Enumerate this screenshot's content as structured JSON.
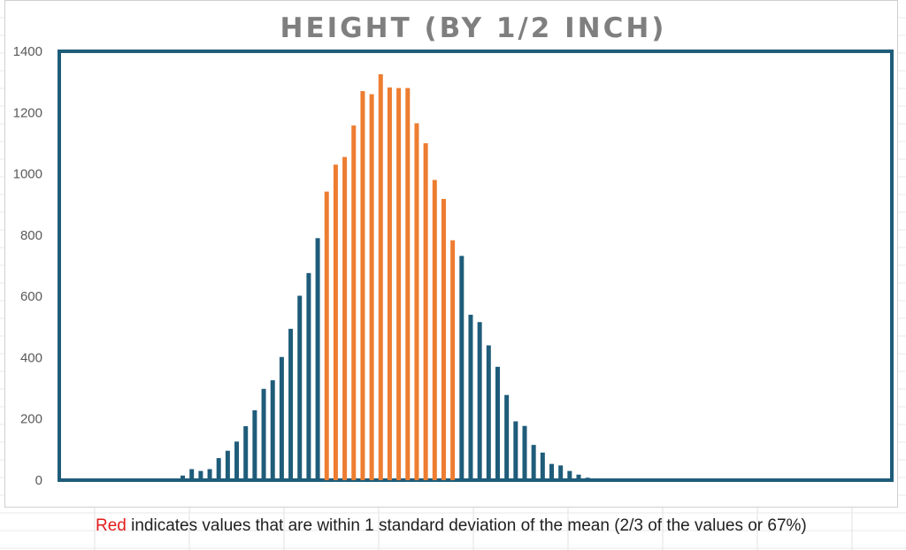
{
  "caption": {
    "highlight_word": "Red",
    "rest": " indicates values that are within 1 standard deviation of the mean (2/3 of the values or 67%)"
  },
  "colors": {
    "highlight": "#ED7D31",
    "base": "#1F5C7A",
    "frame": "#1F5C7A",
    "caption_red": "#E31B1B"
  },
  "chart_data": {
    "type": "bar",
    "title": "HEIGHT (BY 1/2 INCH)",
    "xlabel": "",
    "ylabel": "",
    "ylim": [
      0,
      1400
    ],
    "yticks": [
      0,
      200,
      400,
      600,
      800,
      1000,
      1200,
      1400
    ],
    "grid": false,
    "legend": "none",
    "values": [
      0,
      0,
      0,
      0,
      0,
      0,
      0,
      0,
      0,
      15,
      36,
      30,
      36,
      72,
      96,
      126,
      176,
      228,
      298,
      326,
      402,
      494,
      602,
      676,
      790,
      942,
      1030,
      1055,
      1158,
      1270,
      1260,
      1325,
      1282,
      1280,
      1280,
      1165,
      1100,
      980,
      918,
      783,
      732,
      540,
      516,
      440,
      370,
      278,
      192,
      177,
      115,
      90,
      53,
      48,
      30,
      18,
      8,
      5,
      0,
      0,
      0,
      0,
      0,
      0,
      0
    ],
    "highlight_range": [
      25,
      39
    ]
  }
}
